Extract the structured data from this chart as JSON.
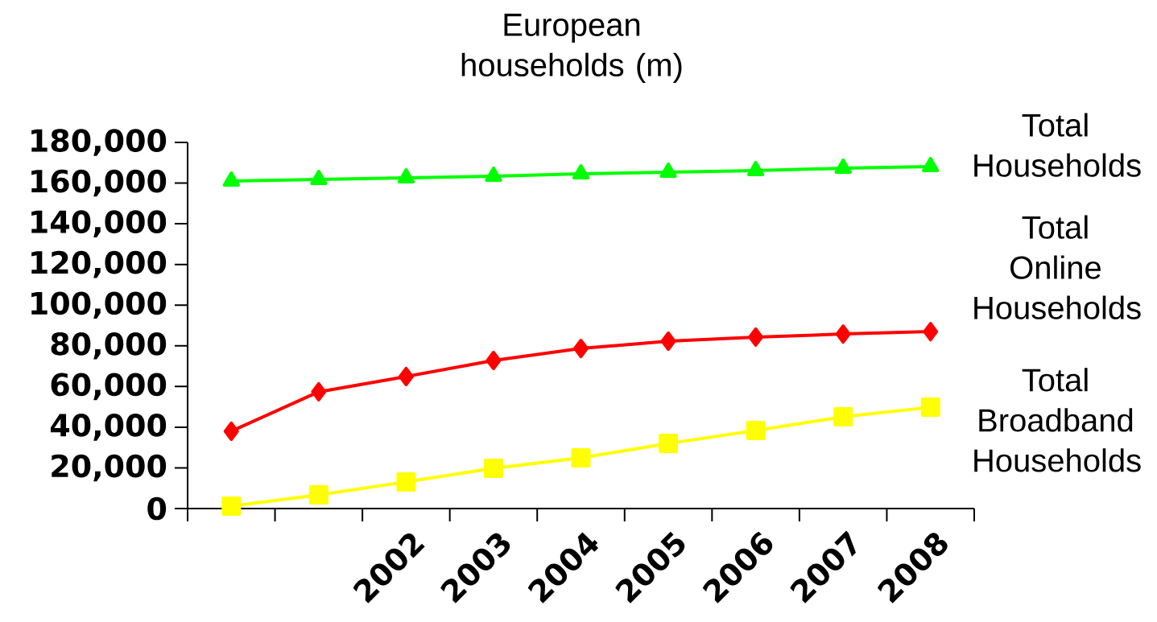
{
  "chart_data": {
    "type": "line",
    "title": "European households (m)",
    "categories": [
      null,
      null,
      "2002",
      "2003",
      "2004",
      "2005",
      "2006",
      "2007",
      "2008"
    ],
    "series": [
      {
        "name": "Total Households",
        "color": "#00ff00",
        "marker": "triangle",
        "values": [
          161000,
          161800,
          162600,
          163400,
          164600,
          165400,
          166200,
          167300,
          168100
        ]
      },
      {
        "name": "Total Online Households",
        "color": "#ff0000",
        "marker": "diamond",
        "values": [
          38000,
          57400,
          64900,
          72800,
          78700,
          82300,
          84300,
          85800,
          87000
        ]
      },
      {
        "name": "Total Broadband Households",
        "color": "#ffff00",
        "marker": "square",
        "values": [
          1200,
          6700,
          13100,
          19800,
          24900,
          32000,
          38400,
          45100,
          49800
        ]
      }
    ],
    "ylim": [
      0,
      180000
    ],
    "yticks": [
      {
        "value": 0,
        "label": "0"
      },
      {
        "value": 20000,
        "label": "20,000"
      },
      {
        "value": 40000,
        "label": "40,000"
      },
      {
        "value": 60000,
        "label": "60,000"
      },
      {
        "value": 80000,
        "label": "80,000"
      },
      {
        "value": 100000,
        "label": "100,000"
      },
      {
        "value": 120000,
        "label": "120,000"
      },
      {
        "value": 140000,
        "label": "140,000"
      },
      {
        "value": 160000,
        "label": "160,000"
      },
      {
        "value": 180000,
        "label": "180,000"
      }
    ],
    "grid": false
  }
}
